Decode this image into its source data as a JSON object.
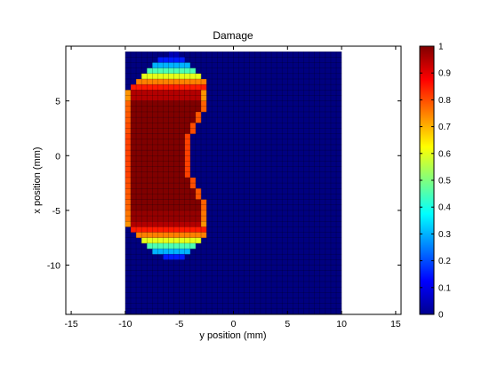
{
  "figure": {
    "title": "Damage",
    "xlabel": "y position (mm)",
    "ylabel": "x position (mm)"
  },
  "chart_data": {
    "type": "heatmap",
    "title": "Damage",
    "xlabel": "y position (mm)",
    "ylabel": "x position (mm)",
    "xlim": [
      -15.5,
      15.5
    ],
    "ylim": [
      -14.5,
      10
    ],
    "xticks": [
      -15,
      -10,
      -5,
      0,
      5,
      10,
      15
    ],
    "yticks": [
      5,
      0,
      -5,
      -10
    ],
    "colormap": "jet",
    "grid": false,
    "cell_size_mm": 0.5,
    "domain": {
      "x_range": [
        -10,
        10
      ],
      "y_range": [
        -14.5,
        9.5
      ]
    },
    "background_value": 0,
    "damage_profile": [
      {
        "x": 9.25,
        "y_start": -6.0,
        "y_end": -5.0,
        "value": 0.05
      },
      {
        "x": 8.75,
        "y_start": -7.0,
        "y_end": -4.5,
        "value": 0.15
      },
      {
        "x": 8.25,
        "y_start": -7.5,
        "y_end": -4.0,
        "value": 0.3
      },
      {
        "x": 7.75,
        "y_start": -8.0,
        "y_end": -3.5,
        "value": 0.45
      },
      {
        "x": 7.25,
        "y_start": -8.5,
        "y_end": -3.0,
        "value": 0.6
      },
      {
        "x": 6.75,
        "y_start": -9.0,
        "y_end": -2.5,
        "value": 0.75
      },
      {
        "x": 6.25,
        "y_start": -9.5,
        "y_end": -2.5,
        "value": 0.85
      },
      {
        "x": 5.75,
        "y_start": -10.0,
        "y_end": -2.5,
        "value": 0.95
      },
      {
        "x": 4.75,
        "y_start": -10.0,
        "y_end": -2.5,
        "value": 1.0
      },
      {
        "x": 3.75,
        "y_start": -10.0,
        "y_end": -3.0,
        "value": 1.0
      },
      {
        "x": 2.75,
        "y_start": -10.0,
        "y_end": -3.5,
        "value": 1.0
      },
      {
        "x": 1.75,
        "y_start": -10.0,
        "y_end": -4.0,
        "value": 1.0
      },
      {
        "x": 0.75,
        "y_start": -10.0,
        "y_end": -4.0,
        "value": 1.0
      },
      {
        "x": -0.25,
        "y_start": -10.0,
        "y_end": -4.0,
        "value": 1.0
      },
      {
        "x": -1.25,
        "y_start": -10.0,
        "y_end": -4.0,
        "value": 1.0
      },
      {
        "x": -2.25,
        "y_start": -10.0,
        "y_end": -3.5,
        "value": 1.0
      },
      {
        "x": -3.25,
        "y_start": -10.0,
        "y_end": -3.0,
        "value": 1.0
      },
      {
        "x": -4.25,
        "y_start": -10.0,
        "y_end": -2.5,
        "value": 1.0
      },
      {
        "x": -5.25,
        "y_start": -10.0,
        "y_end": -2.5,
        "value": 0.98
      },
      {
        "x": -6.25,
        "y_start": -10.0,
        "y_end": -2.5,
        "value": 0.95
      },
      {
        "x": -6.75,
        "y_start": -9.5,
        "y_end": -2.5,
        "value": 0.85
      },
      {
        "x": -7.25,
        "y_start": -9.0,
        "y_end": -2.5,
        "value": 0.75
      },
      {
        "x": -7.75,
        "y_start": -8.5,
        "y_end": -3.0,
        "value": 0.6
      },
      {
        "x": -8.25,
        "y_start": -8.0,
        "y_end": -3.5,
        "value": 0.45
      },
      {
        "x": -8.75,
        "y_start": -7.5,
        "y_end": -4.0,
        "value": 0.3
      },
      {
        "x": -9.25,
        "y_start": -6.5,
        "y_end": -4.5,
        "value": 0.15
      }
    ],
    "colorbar": {
      "ticks": [
        0,
        0.1,
        0.2,
        0.3,
        0.4,
        0.5,
        0.6,
        0.7,
        0.8,
        0.9,
        1
      ],
      "tick_labels": [
        "0",
        "0.1",
        "0.2",
        "0.3",
        "0.4",
        "0.5",
        "0.6",
        "0.7",
        "0.8",
        "0.9",
        "1"
      ],
      "range": [
        0,
        1
      ]
    }
  }
}
